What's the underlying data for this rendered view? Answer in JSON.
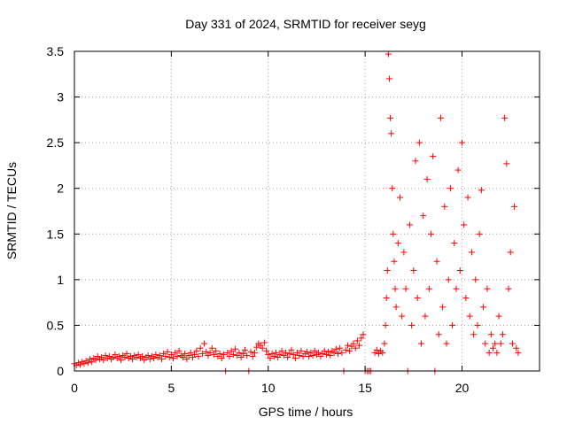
{
  "chart_data": {
    "type": "scatter",
    "title": "Day 331 of 2024, SRMTID for receiver seyg",
    "xlabel": "GPS time / hours",
    "ylabel": "SRMTID / TECUs",
    "xlim": [
      0,
      24
    ],
    "ylim": [
      0,
      3.5
    ],
    "x_ticks": [
      0,
      5,
      10,
      15,
      20
    ],
    "x_tick_labels": [
      "0",
      "5",
      "10",
      "15",
      "20"
    ],
    "y_ticks": [
      0,
      0.5,
      1,
      1.5,
      2,
      2.5,
      3,
      3.5
    ],
    "y_tick_labels": [
      "0",
      "0.5",
      "1",
      "1.5",
      "2",
      "2.5",
      "3",
      "3.5"
    ],
    "grid": true,
    "marker": "+",
    "color": "#ff0000",
    "series": [
      {
        "name": "SRMTID",
        "points": [
          [
            0.0,
            0.08
          ],
          [
            0.1,
            0.06
          ],
          [
            0.2,
            0.09
          ],
          [
            0.3,
            0.07
          ],
          [
            0.4,
            0.1
          ],
          [
            0.5,
            0.08
          ],
          [
            0.6,
            0.11
          ],
          [
            0.7,
            0.09
          ],
          [
            0.8,
            0.13
          ],
          [
            0.9,
            0.1
          ],
          [
            1.0,
            0.14
          ],
          [
            1.1,
            0.12
          ],
          [
            1.2,
            0.16
          ],
          [
            1.3,
            0.13
          ],
          [
            1.4,
            0.15
          ],
          [
            1.5,
            0.12
          ],
          [
            1.6,
            0.17
          ],
          [
            1.7,
            0.14
          ],
          [
            1.8,
            0.16
          ],
          [
            1.9,
            0.13
          ],
          [
            2.0,
            0.15
          ],
          [
            2.1,
            0.18
          ],
          [
            2.2,
            0.14
          ],
          [
            2.3,
            0.16
          ],
          [
            2.4,
            0.12
          ],
          [
            2.5,
            0.17
          ],
          [
            2.6,
            0.15
          ],
          [
            2.7,
            0.19
          ],
          [
            2.8,
            0.14
          ],
          [
            2.9,
            0.16
          ],
          [
            3.0,
            0.13
          ],
          [
            3.1,
            0.17
          ],
          [
            3.2,
            0.15
          ],
          [
            3.3,
            0.18
          ],
          [
            3.4,
            0.14
          ],
          [
            3.5,
            0.16
          ],
          [
            3.6,
            0.12
          ],
          [
            3.7,
            0.15
          ],
          [
            3.8,
            0.17
          ],
          [
            3.9,
            0.13
          ],
          [
            4.0,
            0.16
          ],
          [
            4.1,
            0.14
          ],
          [
            4.2,
            0.18
          ],
          [
            4.3,
            0.15
          ],
          [
            4.4,
            0.17
          ],
          [
            4.5,
            0.13
          ],
          [
            4.6,
            0.19
          ],
          [
            4.7,
            0.16
          ],
          [
            4.8,
            0.21
          ],
          [
            4.9,
            0.15
          ],
          [
            5.0,
            0.18
          ],
          [
            5.1,
            0.14
          ],
          [
            5.2,
            0.2
          ],
          [
            5.3,
            0.16
          ],
          [
            5.4,
            0.22
          ],
          [
            5.5,
            0.17
          ],
          [
            5.6,
            0.15
          ],
          [
            5.7,
            0.19
          ],
          [
            5.8,
            0.13
          ],
          [
            5.9,
            0.17
          ],
          [
            6.0,
            0.2
          ],
          [
            6.1,
            0.15
          ],
          [
            6.2,
            0.18
          ],
          [
            6.3,
            0.22
          ],
          [
            6.4,
            0.16
          ],
          [
            6.5,
            0.25
          ],
          [
            6.6,
            0.19
          ],
          [
            6.7,
            0.3
          ],
          [
            6.8,
            0.21
          ],
          [
            6.9,
            0.17
          ],
          [
            7.0,
            0.2
          ],
          [
            7.1,
            0.25
          ],
          [
            7.2,
            0.18
          ],
          [
            7.3,
            0.22
          ],
          [
            7.4,
            0.16
          ],
          [
            7.5,
            0.19
          ],
          [
            7.6,
            0.14
          ],
          [
            7.7,
            0.18
          ],
          [
            7.8,
            0.0
          ],
          [
            7.9,
            0.2
          ],
          [
            8.0,
            0.16
          ],
          [
            8.1,
            0.22
          ],
          [
            8.2,
            0.18
          ],
          [
            8.3,
            0.24
          ],
          [
            8.4,
            0.17
          ],
          [
            8.5,
            0.2
          ],
          [
            8.6,
            0.15
          ],
          [
            8.7,
            0.19
          ],
          [
            8.8,
            0.23
          ],
          [
            8.9,
            0.17
          ],
          [
            9.0,
            0.0
          ],
          [
            9.1,
            0.21
          ],
          [
            9.2,
            0.16
          ],
          [
            9.3,
            0.2
          ],
          [
            9.4,
            0.26
          ],
          [
            9.5,
            0.3
          ],
          [
            9.6,
            0.28
          ],
          [
            9.7,
            0.25
          ],
          [
            9.8,
            0.31
          ],
          [
            9.9,
            0.22
          ],
          [
            10.0,
            0.18
          ],
          [
            10.1,
            0.14
          ],
          [
            10.2,
            0.19
          ],
          [
            10.3,
            0.16
          ],
          [
            10.4,
            0.2
          ],
          [
            10.5,
            0.15
          ],
          [
            10.6,
            0.18
          ],
          [
            10.7,
            0.22
          ],
          [
            10.8,
            0.17
          ],
          [
            10.9,
            0.2
          ],
          [
            11.0,
            0.15
          ],
          [
            11.1,
            0.19
          ],
          [
            11.2,
            0.23
          ],
          [
            11.3,
            0.18
          ],
          [
            11.4,
            0.14
          ],
          [
            11.5,
            0.2
          ],
          [
            11.6,
            0.17
          ],
          [
            11.7,
            0.22
          ],
          [
            11.8,
            0.16
          ],
          [
            11.9,
            0.19
          ],
          [
            12.0,
            0.21
          ],
          [
            12.1,
            0.16
          ],
          [
            12.2,
            0.2
          ],
          [
            12.3,
            0.17
          ],
          [
            12.4,
            0.22
          ],
          [
            12.5,
            0.18
          ],
          [
            12.6,
            0.2
          ],
          [
            12.7,
            0.16
          ],
          [
            12.8,
            0.19
          ],
          [
            12.9,
            0.22
          ],
          [
            13.0,
            0.18
          ],
          [
            13.1,
            0.21
          ],
          [
            13.2,
            0.17
          ],
          [
            13.3,
            0.22
          ],
          [
            13.4,
            0.2
          ],
          [
            13.5,
            0.24
          ],
          [
            13.6,
            0.19
          ],
          [
            13.7,
            0.25
          ],
          [
            13.8,
            0.2
          ],
          [
            13.9,
            0.0
          ],
          [
            14.0,
            0.23
          ],
          [
            14.1,
            0.28
          ],
          [
            14.2,
            0.22
          ],
          [
            14.3,
            0.27
          ],
          [
            14.4,
            0.3
          ],
          [
            14.5,
            0.25
          ],
          [
            14.6,
            0.33
          ],
          [
            14.7,
            0.28
          ],
          [
            14.8,
            0.36
          ],
          [
            14.9,
            0.4
          ],
          [
            15.0,
            0.0
          ],
          [
            15.1,
            0.0
          ],
          [
            15.2,
            0.0
          ],
          [
            15.3,
            0.0
          ],
          [
            15.5,
            0.2
          ],
          [
            15.6,
            0.23
          ],
          [
            15.7,
            0.19
          ],
          [
            15.8,
            0.22
          ],
          [
            15.9,
            0.2
          ],
          [
            16.0,
            0.3
          ],
          [
            16.05,
            0.5
          ],
          [
            16.1,
            0.8
          ],
          [
            16.15,
            1.1
          ],
          [
            16.2,
            3.47
          ],
          [
            16.25,
            3.2
          ],
          [
            16.3,
            2.77
          ],
          [
            16.35,
            2.6
          ],
          [
            16.4,
            2.0
          ],
          [
            16.45,
            1.5
          ],
          [
            16.5,
            1.2
          ],
          [
            16.55,
            0.9
          ],
          [
            16.6,
            0.7
          ],
          [
            16.7,
            1.4
          ],
          [
            16.8,
            1.9
          ],
          [
            16.9,
            0.6
          ],
          [
            17.0,
            1.3
          ],
          [
            17.1,
            0.9
          ],
          [
            17.2,
            0.0
          ],
          [
            17.3,
            1.6
          ],
          [
            17.4,
            0.5
          ],
          [
            17.5,
            1.1
          ],
          [
            17.6,
            2.3
          ],
          [
            17.7,
            0.8
          ],
          [
            17.8,
            2.5
          ],
          [
            17.9,
            0.3
          ],
          [
            18.0,
            1.7
          ],
          [
            18.1,
            0.6
          ],
          [
            18.2,
            2.1
          ],
          [
            18.3,
            0.9
          ],
          [
            18.4,
            1.5
          ],
          [
            18.5,
            2.35
          ],
          [
            18.6,
            0.0
          ],
          [
            18.7,
            1.2
          ],
          [
            18.8,
            0.4
          ],
          [
            18.9,
            2.77
          ],
          [
            19.0,
            0.7
          ],
          [
            19.1,
            1.8
          ],
          [
            19.2,
            0.3
          ],
          [
            19.3,
            1.0
          ],
          [
            19.4,
            2.0
          ],
          [
            19.5,
            0.5
          ],
          [
            19.6,
            1.4
          ],
          [
            19.7,
            0.9
          ],
          [
            19.8,
            2.2
          ],
          [
            19.9,
            1.1
          ],
          [
            20.0,
            2.5
          ],
          [
            20.1,
            1.6
          ],
          [
            20.2,
            0.8
          ],
          [
            20.3,
            1.9
          ],
          [
            20.4,
            0.6
          ],
          [
            20.5,
            1.3
          ],
          [
            20.6,
            0.4
          ],
          [
            20.7,
            1.0
          ],
          [
            20.8,
            0.5
          ],
          [
            20.9,
            1.5
          ],
          [
            21.0,
            1.98
          ],
          [
            21.1,
            0.7
          ],
          [
            21.2,
            0.3
          ],
          [
            21.3,
            0.9
          ],
          [
            21.4,
            0.2
          ],
          [
            21.5,
            0.4
          ],
          [
            21.6,
            0.25
          ],
          [
            21.7,
            0.3
          ],
          [
            21.8,
            0.2
          ],
          [
            21.9,
            0.6
          ],
          [
            22.0,
            0.3
          ],
          [
            22.1,
            0.4
          ],
          [
            22.2,
            2.77
          ],
          [
            22.3,
            2.27
          ],
          [
            22.4,
            0.9
          ],
          [
            22.5,
            1.3
          ],
          [
            22.6,
            0.3
          ],
          [
            22.7,
            1.8
          ],
          [
            22.8,
            0.25
          ],
          [
            22.9,
            0.2
          ]
        ]
      }
    ]
  }
}
